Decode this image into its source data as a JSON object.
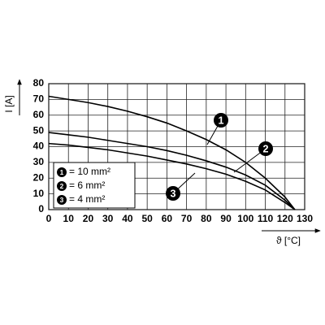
{
  "chart_data": {
    "type": "line",
    "x_label": "ϑ [°C]",
    "y_label": "I [A]",
    "x": [
      0,
      10,
      20,
      30,
      40,
      50,
      60,
      70,
      80,
      90,
      100,
      110,
      120,
      125
    ],
    "series": [
      {
        "name": "1",
        "label": "= 10 mm²",
        "color": "#000000",
        "values": [
          72,
          70,
          68,
          65.5,
          62.5,
          59,
          55,
          50,
          44.5,
          38,
          30,
          20,
          8,
          0
        ]
      },
      {
        "name": "2",
        "label": "= 6 mm²",
        "color": "#000000",
        "values": [
          49,
          47.5,
          46,
          44,
          42,
          40,
          37.5,
          34.5,
          31,
          27,
          22,
          15.5,
          6,
          0
        ]
      },
      {
        "name": "3",
        "label": "= 4 mm²",
        "color": "#000000",
        "values": [
          42,
          41,
          39.5,
          38,
          36,
          34,
          31.5,
          29,
          26,
          22.5,
          18,
          12.5,
          4.5,
          0
        ]
      }
    ],
    "xlim": [
      0,
      130
    ],
    "xticks": [
      0,
      10,
      20,
      30,
      40,
      50,
      60,
      70,
      80,
      90,
      100,
      110,
      120,
      130
    ],
    "ylim": [
      0,
      80
    ],
    "yticks": [
      0,
      10,
      20,
      30,
      40,
      50,
      60,
      70,
      80
    ],
    "grid": true
  }
}
